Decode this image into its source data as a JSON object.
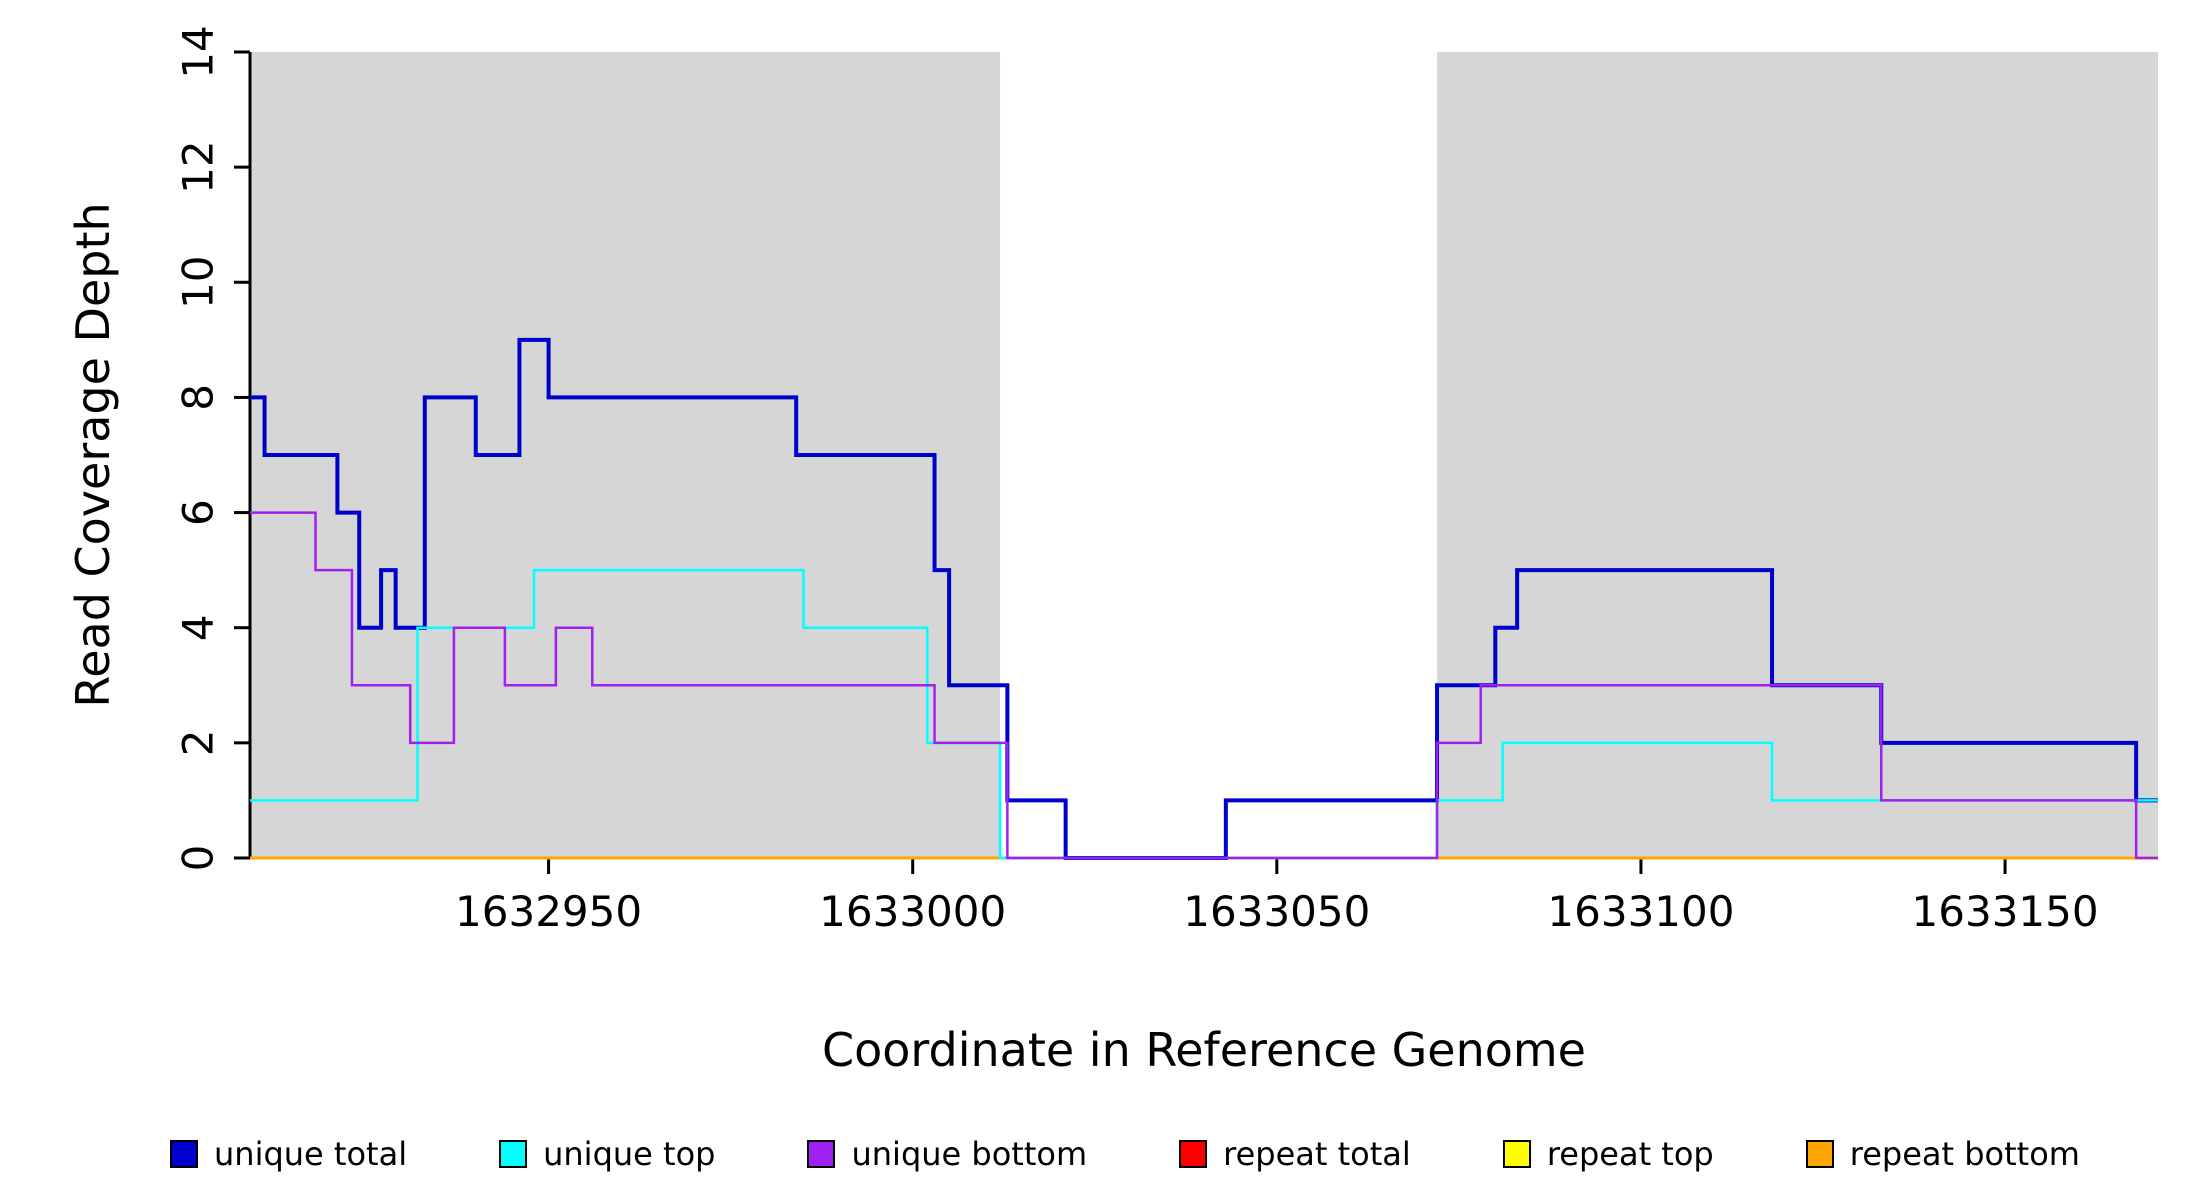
{
  "chart_data": {
    "type": "line",
    "subtype": "step",
    "title": "",
    "xlabel": "Coordinate in Reference Genome",
    "ylabel": "Read Coverage Depth",
    "xlim": [
      1632909,
      1633171
    ],
    "ylim": [
      0,
      14
    ],
    "xticks": [
      1632950,
      1633000,
      1633050,
      1633100,
      1633150
    ],
    "yticks": [
      0,
      2,
      4,
      6,
      8,
      10,
      12,
      14
    ],
    "grid": false,
    "legend_position": "bottom",
    "background_color": "#ffffff",
    "shaded_region_color": "#d6d6d6",
    "shaded_regions": [
      {
        "x0": 1632909,
        "x1": 1633012
      },
      {
        "x0": 1633072,
        "x1": 1633171
      }
    ],
    "series": [
      {
        "name": "unique total",
        "color": "#0000cd",
        "line_width": 4,
        "steps": [
          [
            1632909,
            8
          ],
          [
            1632911,
            7
          ],
          [
            1632921,
            6
          ],
          [
            1632924,
            4
          ],
          [
            1632927,
            5
          ],
          [
            1632929,
            4
          ],
          [
            1632933,
            8
          ],
          [
            1632940,
            7
          ],
          [
            1632946,
            9
          ],
          [
            1632950,
            8
          ],
          [
            1632984,
            7
          ],
          [
            1633003,
            5
          ],
          [
            1633005,
            3
          ],
          [
            1633013,
            1
          ],
          [
            1633021,
            0
          ],
          [
            1633043,
            1
          ],
          [
            1633072,
            3
          ],
          [
            1633080,
            4
          ],
          [
            1633083,
            5
          ],
          [
            1633118,
            3
          ],
          [
            1633133,
            2
          ],
          [
            1633168,
            1
          ],
          [
            1633171,
            1
          ]
        ]
      },
      {
        "name": "unique top",
        "color": "#00ffff",
        "line_width": 2.5,
        "steps": [
          [
            1632909,
            1
          ],
          [
            1632932,
            4
          ],
          [
            1632948,
            5
          ],
          [
            1632985,
            4
          ],
          [
            1633002,
            2
          ],
          [
            1633012,
            0
          ],
          [
            1633072,
            1
          ],
          [
            1633081,
            2
          ],
          [
            1633118,
            1
          ],
          [
            1633171,
            1
          ]
        ]
      },
      {
        "name": "unique bottom",
        "color": "#a020f0",
        "line_width": 2.5,
        "steps": [
          [
            1632909,
            6
          ],
          [
            1632918,
            5
          ],
          [
            1632923,
            3
          ],
          [
            1632931,
            2
          ],
          [
            1632937,
            4
          ],
          [
            1632944,
            3
          ],
          [
            1632951,
            4
          ],
          [
            1632956,
            3
          ],
          [
            1633003,
            2
          ],
          [
            1633013,
            0
          ],
          [
            1633072,
            2
          ],
          [
            1633078,
            3
          ],
          [
            1633133,
            1
          ],
          [
            1633168,
            0
          ],
          [
            1633171,
            0
          ]
        ]
      },
      {
        "name": "repeat total",
        "color": "#ff0000",
        "line_width": 2.5,
        "steps": [
          [
            1632909,
            0
          ],
          [
            1633171,
            0
          ]
        ]
      },
      {
        "name": "repeat top",
        "color": "#ffff00",
        "line_width": 2.5,
        "steps": [
          [
            1632909,
            0
          ],
          [
            1633171,
            0
          ]
        ]
      },
      {
        "name": "repeat bottom",
        "color": "#ffa500",
        "line_width": 3,
        "steps": [
          [
            1632909,
            0
          ],
          [
            1633171,
            0
          ]
        ]
      }
    ],
    "draw_order": [
      3,
      4,
      5,
      0,
      1,
      2
    ]
  }
}
